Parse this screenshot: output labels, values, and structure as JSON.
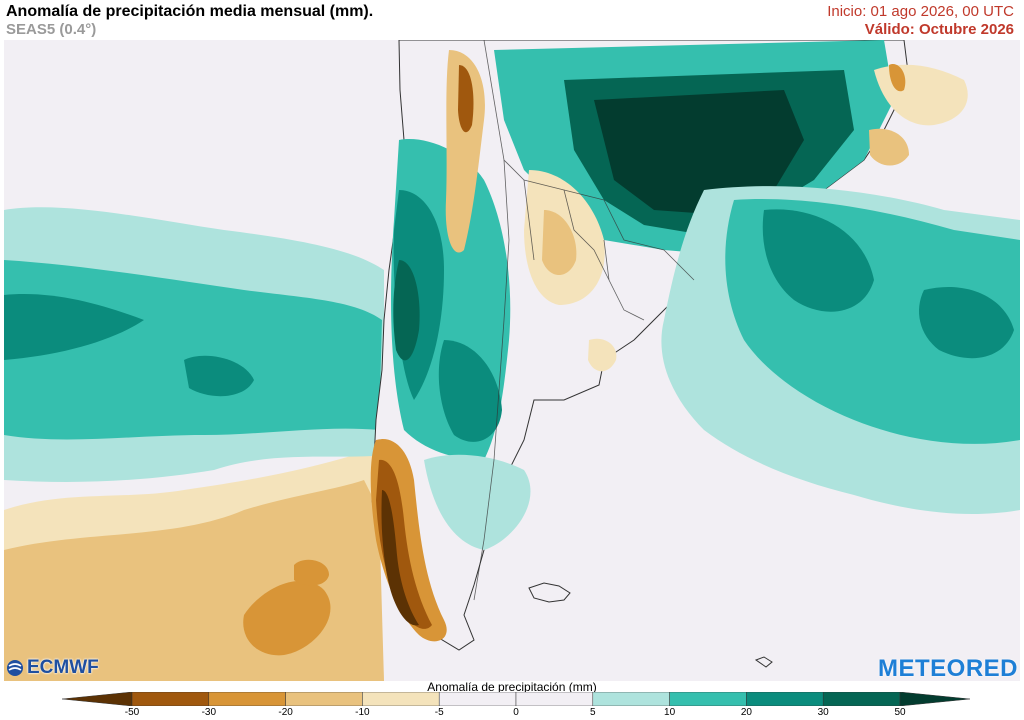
{
  "header": {
    "title": "Anomalía de precipitación media mensual (mm).",
    "subtitle": "SEAS5 (0.4°)",
    "init": "Inicio: 01 ago 2026, 00 UTC",
    "valid": "Válido: Octubre 2026"
  },
  "logos": {
    "left": "ECMWF",
    "right": "METEORED"
  },
  "legend": {
    "title": "Anomalía de precipitación (mm)",
    "ticks": [
      "-50",
      "-30",
      "-20",
      "-10",
      "-5",
      "0",
      "5",
      "10",
      "20",
      "30",
      "50"
    ],
    "colors": [
      "#5c3204",
      "#a0580e",
      "#d89537",
      "#e9c27e",
      "#f4e3bb",
      "#f2eff4",
      "#f2eff4",
      "#aee3dd",
      "#35bfae",
      "#0b8c7d",
      "#056654",
      "#033c2f"
    ]
  },
  "map_colors": {
    "ocean_neutral": "#f2eff4",
    "dry_light": "#f4e3bb",
    "dry_med": "#e9c27e",
    "dry_strong": "#d89537",
    "dry_very": "#a0580e",
    "dry_extreme": "#5c3204",
    "wet_light": "#aee3dd",
    "wet_med": "#35bfae",
    "wet_strong": "#0b8c7d",
    "wet_very": "#056654",
    "wet_extreme": "#033c2f",
    "border": "#333333"
  }
}
